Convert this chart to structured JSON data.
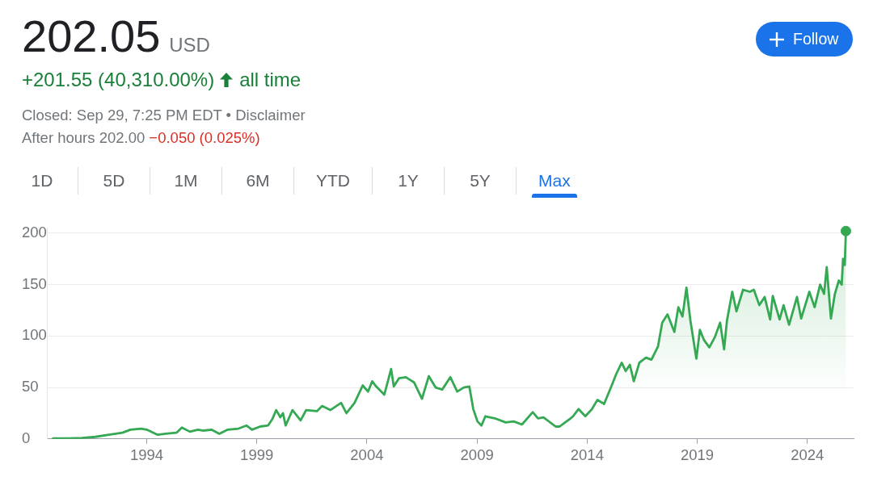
{
  "chart_data": {
    "type": "area",
    "title": "202.05",
    "annotations": [
      "USD",
      "+201.55 (40,310.00%)",
      "all time",
      "Closed: Sep 29, 7:25 PM EDT • Disclaimer",
      "After hours 202.00",
      "−0.050 (0.025%)",
      "Follow",
      "1D",
      "5D",
      "1M",
      "6M",
      "YTD",
      "1Y",
      "5Y",
      "Max"
    ],
    "x": [
      1989.75,
      1990.45,
      1991.06,
      1991.67,
      1992.28,
      1992.9,
      1993.26,
      1993.75,
      1994.0,
      1994.5,
      1994.86,
      1995.35,
      1995.6,
      1995.96,
      1996.33,
      1996.57,
      1996.94,
      1997.3,
      1997.68,
      1998.17,
      1998.53,
      1998.78,
      1999.15,
      1999.51,
      1999.7,
      1999.88,
      2000.07,
      2000.19,
      2000.31,
      2000.62,
      2000.99,
      2001.24,
      2001.73,
      2001.97,
      2002.34,
      2002.83,
      2003.07,
      2003.44,
      2003.81,
      2004.05,
      2004.24,
      2004.42,
      2004.79,
      2005.1,
      2005.22,
      2005.46,
      2005.77,
      2006.14,
      2006.5,
      2006.81,
      2007.12,
      2007.42,
      2007.79,
      2008.1,
      2008.4,
      2008.65,
      2008.83,
      2009.02,
      2009.2,
      2009.38,
      2009.81,
      2010.3,
      2010.67,
      2011.04,
      2011.53,
      2011.77,
      2012.02,
      2012.57,
      2012.75,
      2013.0,
      2013.25,
      2013.36,
      2013.61,
      2013.92,
      2014.22,
      2014.47,
      2014.77,
      2015.08,
      2015.32,
      2015.57,
      2015.75,
      2015.94,
      2016.12,
      2016.37,
      2016.67,
      2016.92,
      2017.22,
      2017.41,
      2017.65,
      2017.96,
      2018.14,
      2018.33,
      2018.51,
      2018.69,
      2018.96,
      2019.12,
      2019.31,
      2019.55,
      2019.8,
      2020.04,
      2020.22,
      2020.35,
      2020.59,
      2020.78,
      2021.08,
      2021.39,
      2021.57,
      2021.82,
      2022.06,
      2022.31,
      2022.43,
      2022.74,
      2022.92,
      2023.17,
      2023.53,
      2023.72,
      2024.09,
      2024.33,
      2024.58,
      2024.76,
      2024.88,
      2025.07,
      2025.25,
      2025.43,
      2025.56,
      2025.62,
      2025.7,
      2025.75
    ],
    "series": [
      {
        "color": "#34a853",
        "values": [
          0.5,
          0.5,
          1,
          2,
          4,
          6,
          9,
          10,
          9,
          4,
          5,
          6,
          11,
          7,
          9,
          8,
          9,
          5,
          9,
          10,
          13,
          9,
          12,
          13,
          19,
          28,
          21,
          25,
          13,
          28,
          18,
          28,
          27,
          32,
          28,
          35,
          25,
          35,
          52,
          46,
          56,
          51,
          43,
          68,
          51,
          59,
          60,
          55,
          39,
          61,
          50,
          48,
          60,
          46,
          50,
          51,
          29,
          17,
          13,
          22,
          20,
          16,
          17,
          14,
          26,
          20,
          21,
          12,
          12,
          16,
          20,
          22,
          29,
          22,
          29,
          38,
          34,
          50,
          63,
          74,
          66,
          72,
          56,
          74,
          79,
          77,
          90,
          113,
          121,
          104,
          128,
          119,
          147,
          115,
          78,
          106,
          96,
          89,
          99,
          113,
          87,
          115,
          143,
          124,
          145,
          143,
          145,
          130,
          138,
          116,
          139,
          116,
          130,
          111,
          138,
          117,
          143,
          128,
          150,
          141,
          167,
          117,
          141,
          154,
          150,
          175,
          169,
          202.05
        ]
      },
      {
        "type": "scatter",
        "marker": "circle",
        "color": "#34a853",
        "x": [
          2025.75
        ],
        "values": [
          202.05
        ]
      }
    ],
    "xlim": [
      1989.5,
      2026.1
    ],
    "ylim": [
      0,
      205
    ],
    "xticks": [
      1994,
      1999,
      2004,
      2009,
      2014,
      2019,
      2024
    ],
    "yticks": [
      0,
      50,
      100,
      150,
      200
    ],
    "grid": "y"
  }
}
